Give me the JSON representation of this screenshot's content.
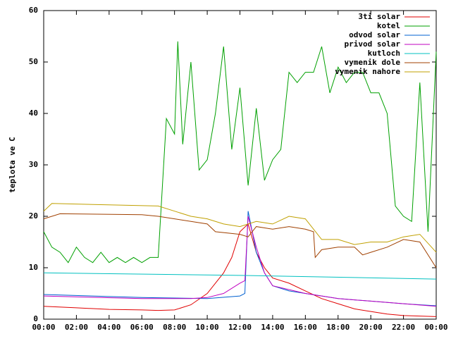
{
  "chart_data": {
    "type": "line",
    "ylabel": "teplota ve C",
    "xlim": [
      0,
      24
    ],
    "ylim": [
      0,
      60
    ],
    "xticks": [
      {
        "value": 0,
        "label": "00:00"
      },
      {
        "value": 2,
        "label": "02:00"
      },
      {
        "value": 4,
        "label": "04:00"
      },
      {
        "value": 6,
        "label": "06:00"
      },
      {
        "value": 8,
        "label": "08:00"
      },
      {
        "value": 10,
        "label": "10:00"
      },
      {
        "value": 12,
        "label": "12:00"
      },
      {
        "value": 14,
        "label": "14:00"
      },
      {
        "value": 16,
        "label": "16:00"
      },
      {
        "value": 18,
        "label": "18:00"
      },
      {
        "value": 20,
        "label": "20:00"
      },
      {
        "value": 22,
        "label": "22:00"
      },
      {
        "value": 24,
        "label": "00:00"
      }
    ],
    "yticks": [
      0,
      10,
      20,
      30,
      40,
      50,
      60
    ],
    "legend": "top-right",
    "series": [
      {
        "name": "3ti solar",
        "color": "#e00000",
        "x": [
          0,
          2,
          4,
          6,
          7,
          8,
          9,
          10,
          11,
          11.5,
          12,
          12.5,
          13,
          13.5,
          14,
          15,
          16,
          17,
          18,
          19,
          20,
          21,
          22,
          23,
          24
        ],
        "values": [
          2.5,
          2.2,
          1.9,
          1.8,
          1.7,
          1.8,
          2.8,
          5,
          9,
          12,
          17,
          18.5,
          13,
          10,
          8,
          7,
          5.5,
          4,
          3,
          2,
          1.5,
          1,
          0.7,
          0.6,
          0.5
        ]
      },
      {
        "name": "kotel",
        "color": "#00a000",
        "x": [
          0,
          0.5,
          1,
          1.5,
          2,
          2.5,
          3,
          3.5,
          4,
          4.5,
          5,
          5.5,
          6,
          6.5,
          7,
          7.5,
          8,
          8.2,
          8.5,
          9,
          9.5,
          10,
          10.5,
          11,
          11.5,
          12,
          12.5,
          13,
          13.5,
          14,
          14.5,
          15,
          15.5,
          16,
          16.5,
          17,
          17.5,
          18,
          18.5,
          19,
          19.5,
          20,
          20.5,
          21,
          21.5,
          22,
          22.5,
          23,
          23.5,
          24
        ],
        "values": [
          17,
          14,
          13,
          11,
          14,
          12,
          11,
          13,
          11,
          12,
          11,
          12,
          11,
          12,
          12,
          39,
          36,
          54,
          34,
          50,
          29,
          31,
          40,
          53,
          33,
          45,
          26,
          41,
          27,
          31,
          33,
          48,
          46,
          48,
          48,
          53,
          44,
          49,
          46,
          48,
          48,
          44,
          44,
          40,
          22,
          20,
          19,
          46,
          17,
          52
        ]
      },
      {
        "name": "odvod solar",
        "color": "#0060d0",
        "x": [
          0,
          6,
          10,
          12,
          12.3,
          12.5,
          13,
          13.5,
          14,
          15,
          16,
          18,
          20,
          22,
          24
        ],
        "values": [
          4.8,
          4.2,
          4,
          4.5,
          5,
          21,
          13,
          9,
          6.5,
          5.5,
          5,
          4,
          3.5,
          3,
          2.6
        ]
      },
      {
        "name": "privod solar",
        "color": "#c000c0",
        "x": [
          0,
          6,
          9,
          10,
          11,
          12,
          12.3,
          12.5,
          13,
          13.5,
          14,
          16,
          18,
          20,
          24
        ],
        "values": [
          4.5,
          4,
          4,
          4.2,
          5,
          7,
          7.5,
          20,
          14,
          9,
          6.5,
          5,
          4,
          3.5,
          2.5
        ]
      },
      {
        "name": "kutloch",
        "color": "#00c0c0",
        "x": [
          0,
          12,
          24
        ],
        "values": [
          9,
          8.5,
          7.8
        ]
      },
      {
        "name": "vymenik dole",
        "color": "#a04000",
        "x": [
          0,
          1,
          6,
          7,
          8,
          10,
          10.5,
          12,
          12.5,
          13,
          14,
          15,
          16,
          16.5,
          16.6,
          17,
          18,
          19,
          19.5,
          20,
          21,
          22,
          23,
          24
        ],
        "values": [
          19.5,
          20.5,
          20.3,
          20,
          19.5,
          18.5,
          17,
          16.5,
          16,
          18,
          17.5,
          18,
          17.5,
          17,
          12,
          13.5,
          14,
          14,
          12.5,
          13,
          14,
          15.5,
          15,
          10
        ]
      },
      {
        "name": "vymenik nahore",
        "color": "#c0a000",
        "x": [
          0,
          0.5,
          7,
          8,
          9,
          10,
          11,
          12,
          13,
          14,
          15,
          16,
          17,
          18,
          19,
          20,
          21,
          22,
          23,
          24
        ],
        "values": [
          21,
          22.5,
          22,
          21,
          20,
          19.5,
          18.5,
          18,
          19,
          18.5,
          20,
          19.5,
          15.5,
          15.5,
          14.5,
          15,
          15,
          16,
          16.5,
          13
        ]
      }
    ]
  }
}
